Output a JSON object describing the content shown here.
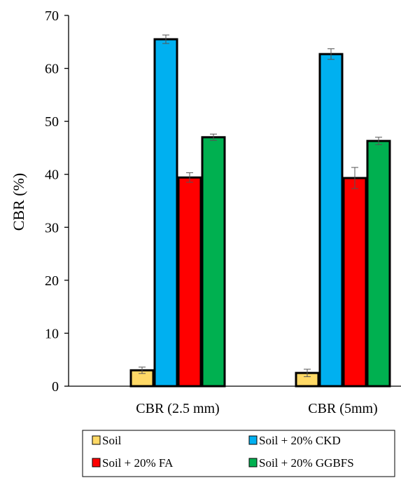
{
  "chart_data": {
    "type": "bar",
    "ylabel": "CBR (%)",
    "ylim": [
      0,
      70
    ],
    "yticks": [
      0,
      10,
      20,
      30,
      40,
      50,
      60,
      70
    ],
    "categories": [
      "CBR (2.5 mm)",
      "CBR (5mm)"
    ],
    "series": [
      {
        "name": "Soil",
        "color": "#FFD966",
        "values": [
          3.0,
          2.5
        ],
        "errors": [
          0.6,
          0.7
        ]
      },
      {
        "name": "Soil + 20% CKD",
        "color": "#00B0F0",
        "values": [
          65.5,
          62.7
        ],
        "errors": [
          0.8,
          1.0
        ]
      },
      {
        "name": "Soil + 20% FA",
        "color": "#FF0000",
        "values": [
          39.4,
          39.3
        ],
        "errors": [
          0.9,
          2.0
        ]
      },
      {
        "name": "Soil + 20% GGBFS",
        "color": "#00B050",
        "values": [
          47.0,
          46.3
        ],
        "errors": [
          0.6,
          0.7
        ]
      }
    ],
    "legend_position": "bottom",
    "grid": false
  }
}
